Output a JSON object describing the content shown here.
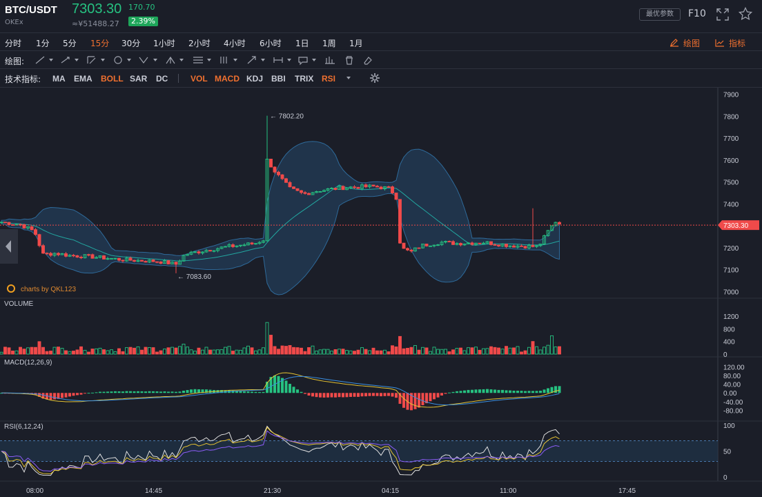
{
  "header": {
    "pair": "BTC/USDT",
    "exchange": "OKEx",
    "price": "7303.30",
    "change": "170.70",
    "cny": "≈¥51488.27",
    "percent": "2.39%",
    "params_label": "最优参数",
    "f10_label": "F10",
    "colors": {
      "up": "#26c281",
      "down": "#f04a4a",
      "accent": "#f0702f"
    }
  },
  "periods": {
    "items": [
      "分时",
      "1分",
      "5分",
      "15分",
      "30分",
      "1小时",
      "2小时",
      "4小时",
      "6小时",
      "1日",
      "1周",
      "1月"
    ],
    "active": "15分",
    "draw_label": "绘图",
    "indicator_label": "指标"
  },
  "drawbar": {
    "label": "绘图:"
  },
  "indicators": {
    "label": "技术指标:",
    "items": [
      {
        "name": "MA",
        "on": false
      },
      {
        "name": "EMA",
        "on": false
      },
      {
        "name": "BOLL",
        "on": true
      },
      {
        "name": "SAR",
        "on": false
      },
      {
        "name": "DC",
        "on": false
      },
      {
        "name": "VOL",
        "on": true
      },
      {
        "name": "MACD",
        "on": true
      },
      {
        "name": "KDJ",
        "on": false
      },
      {
        "name": "BBI",
        "on": false
      },
      {
        "name": "TRIX",
        "on": false
      },
      {
        "name": "RSI",
        "on": true
      }
    ]
  },
  "chart": {
    "watermark": "charts by QKL123",
    "high_label": "7802.20",
    "low_label": "7083.60",
    "last_price_tag": "7303.30",
    "main_axis": [
      "7900",
      "7800",
      "7700",
      "7600",
      "7500",
      "7400",
      "7300",
      "7200",
      "7100",
      "7000"
    ],
    "volume": {
      "title": "VOLUME",
      "axis": [
        "1200",
        "800",
        "400",
        "0"
      ]
    },
    "macd": {
      "title": "MACD(12,26,9)",
      "axis": [
        "120.00",
        "80.00",
        "40.00",
        "0.00",
        "-40.00",
        "-80.00"
      ]
    },
    "rsi": {
      "title": "RSI(6,12,24)",
      "axis": [
        "100",
        "50",
        "0"
      ]
    },
    "time_axis": [
      "08:00",
      "14:45",
      "21:30",
      "04:15",
      "11:00",
      "17:45"
    ]
  },
  "chart_data": {
    "type": "candlestick",
    "price_range": [
      6970,
      7930
    ],
    "high": 7802.2,
    "low": 7083.6,
    "last": 7303.3,
    "price_path_anchors": [
      [
        0,
        7318
      ],
      [
        30,
        7305
      ],
      [
        50,
        7275
      ],
      [
        62,
        7170
      ],
      [
        80,
        7175
      ],
      [
        100,
        7165
      ],
      [
        130,
        7160
      ],
      [
        180,
        7145
      ],
      [
        230,
        7138
      ],
      [
        255,
        7125
      ],
      [
        268,
        7170
      ],
      [
        300,
        7190
      ],
      [
        330,
        7205
      ],
      [
        370,
        7220
      ],
      [
        384,
        7240
      ],
      [
        387,
        7600
      ],
      [
        400,
        7540
      ],
      [
        420,
        7470
      ],
      [
        440,
        7445
      ],
      [
        460,
        7460
      ],
      [
        500,
        7475
      ],
      [
        540,
        7480
      ],
      [
        565,
        7470
      ],
      [
        576,
        7420
      ],
      [
        580,
        7200
      ],
      [
        595,
        7180
      ],
      [
        610,
        7210
      ],
      [
        640,
        7225
      ],
      [
        660,
        7220
      ],
      [
        700,
        7225
      ],
      [
        740,
        7210
      ],
      [
        780,
        7205
      ],
      [
        795,
        7280
      ],
      [
        805,
        7320
      ],
      [
        815,
        7303
      ]
    ],
    "volume_range": [
      0,
      1200
    ],
    "macd_range": [
      -110,
      140
    ],
    "rsi_range": [
      0,
      100
    ],
    "rsi_bands": [
      30,
      70
    ]
  }
}
